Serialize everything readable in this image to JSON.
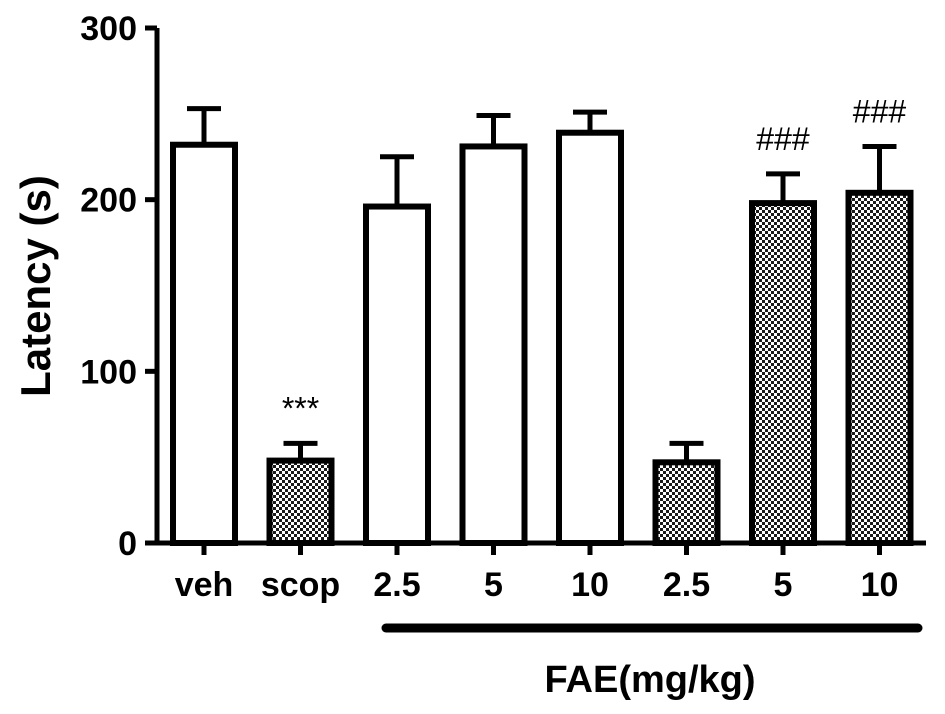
{
  "chart_data": {
    "type": "bar",
    "ylabel": "Latency (s)",
    "xlabel": "",
    "ylim": [
      0,
      300
    ],
    "yticks": [
      "0",
      "100",
      "200",
      "300"
    ],
    "categories": [
      "veh",
      "scop",
      "2.5",
      "5",
      "10",
      "2.5",
      "5",
      "10"
    ],
    "values": [
      232,
      48,
      196,
      231,
      239,
      47,
      198,
      204
    ],
    "errors": [
      21,
      10,
      29,
      18,
      12,
      11,
      17,
      27
    ],
    "fill_pattern": [
      "open",
      "checkered",
      "open",
      "open",
      "open",
      "checkered",
      "checkered",
      "checkered"
    ],
    "annotations": [
      "",
      "***",
      "",
      "",
      "",
      "",
      "###",
      "###"
    ],
    "group_label": "FAE(mg/kg)",
    "colors": {
      "bar_open": "#ffffff",
      "bar_stroke": "#000000",
      "pattern_dark": "#1a1a1a",
      "pattern_light": "#ffffff"
    }
  }
}
